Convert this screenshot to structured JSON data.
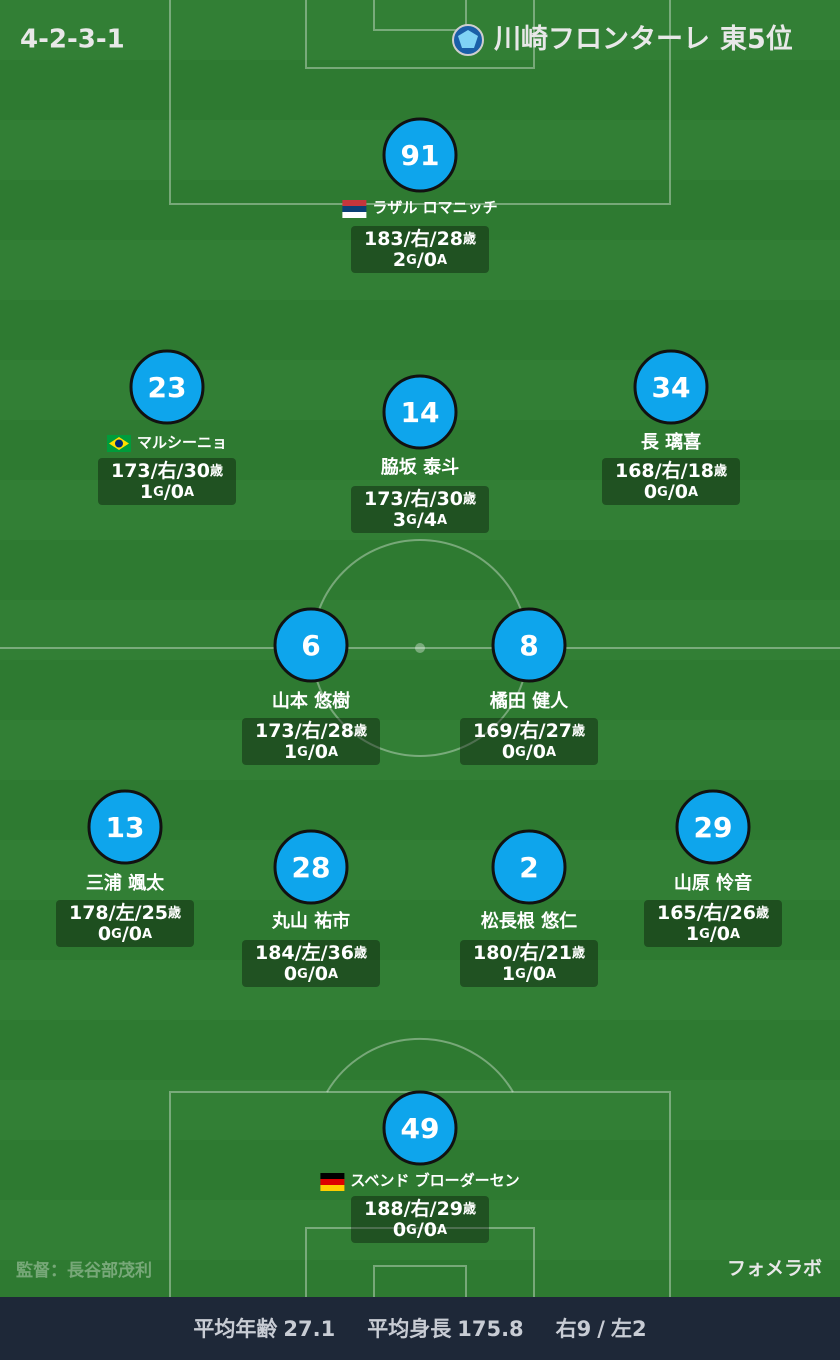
{
  "header": {
    "formation": "4-2-3-1",
    "team_name": "川崎フロンターレ",
    "rank": "東5位"
  },
  "units": {
    "separator": "/",
    "age": "歳",
    "goals": "G",
    "assists": "A"
  },
  "players": [
    {
      "number": 91,
      "name": "ラザル ロマニッチ",
      "height": 183,
      "foot": "右",
      "age": 28,
      "goals": 2,
      "assists": 0
    },
    {
      "number": 23,
      "name": "マルシーニョ",
      "height": 173,
      "foot": "右",
      "age": 30,
      "goals": 1,
      "assists": 0
    },
    {
      "number": 14,
      "name": "脇坂 泰斗",
      "height": 173,
      "foot": "右",
      "age": 30,
      "goals": 3,
      "assists": 4
    },
    {
      "number": 34,
      "name": "長 璃喜",
      "height": 168,
      "foot": "右",
      "age": 18,
      "goals": 0,
      "assists": 0
    },
    {
      "number": 6,
      "name": "山本 悠樹",
      "height": 173,
      "foot": "右",
      "age": 28,
      "goals": 1,
      "assists": 0
    },
    {
      "number": 8,
      "name": "橘田 健人",
      "height": 169,
      "foot": "右",
      "age": 27,
      "goals": 0,
      "assists": 0
    },
    {
      "number": 13,
      "name": "三浦 颯太",
      "height": 178,
      "foot": "左",
      "age": 25,
      "goals": 0,
      "assists": 0
    },
    {
      "number": 28,
      "name": "丸山 祐市",
      "height": 184,
      "foot": "左",
      "age": 36,
      "goals": 0,
      "assists": 0
    },
    {
      "number": 2,
      "name": "松長根 悠仁",
      "height": 180,
      "foot": "右",
      "age": 21,
      "goals": 1,
      "assists": 0
    },
    {
      "number": 29,
      "name": "山原 怜音",
      "height": 165,
      "foot": "右",
      "age": 26,
      "goals": 1,
      "assists": 0
    },
    {
      "number": 49,
      "name": "スベンド ブローダーセン",
      "height": 188,
      "foot": "右",
      "age": 29,
      "goals": 0,
      "assists": 0
    }
  ],
  "footer": {
    "manager": "監督：長谷部茂利",
    "brand": "フォメラボ"
  },
  "summary": {
    "avg_age_label": "平均年齢",
    "avg_age": 27.1,
    "avg_height_label": "平均身長",
    "avg_height": 175.8,
    "right_label": "右",
    "right": 9,
    "separator": "/",
    "left_label": "左",
    "left": 2
  }
}
